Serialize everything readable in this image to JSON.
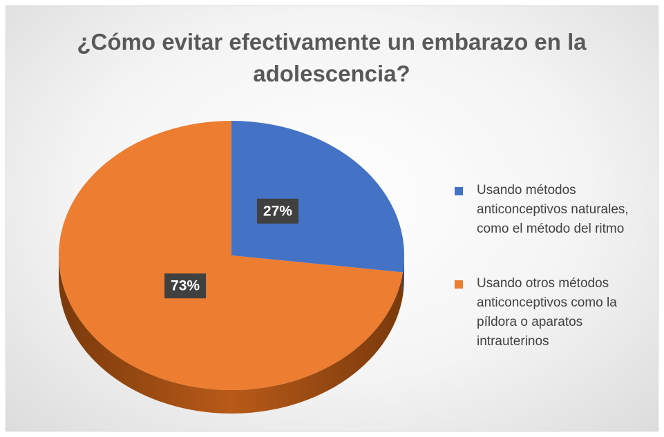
{
  "chart_data": {
    "type": "pie",
    "title": "¿Cómo evitar efectivamente un embarazo en la adolescencia?",
    "categories": [
      "Usando métodos anticonceptivos naturales, como el método del ritmo",
      "Usando otros métodos anticonceptivos como la píldora o aparatos intrauterinos"
    ],
    "values": [
      27,
      73
    ],
    "value_labels": [
      "27%",
      "73%"
    ],
    "colors": [
      "#4472c4",
      "#ed7d31"
    ],
    "legend": "right"
  }
}
